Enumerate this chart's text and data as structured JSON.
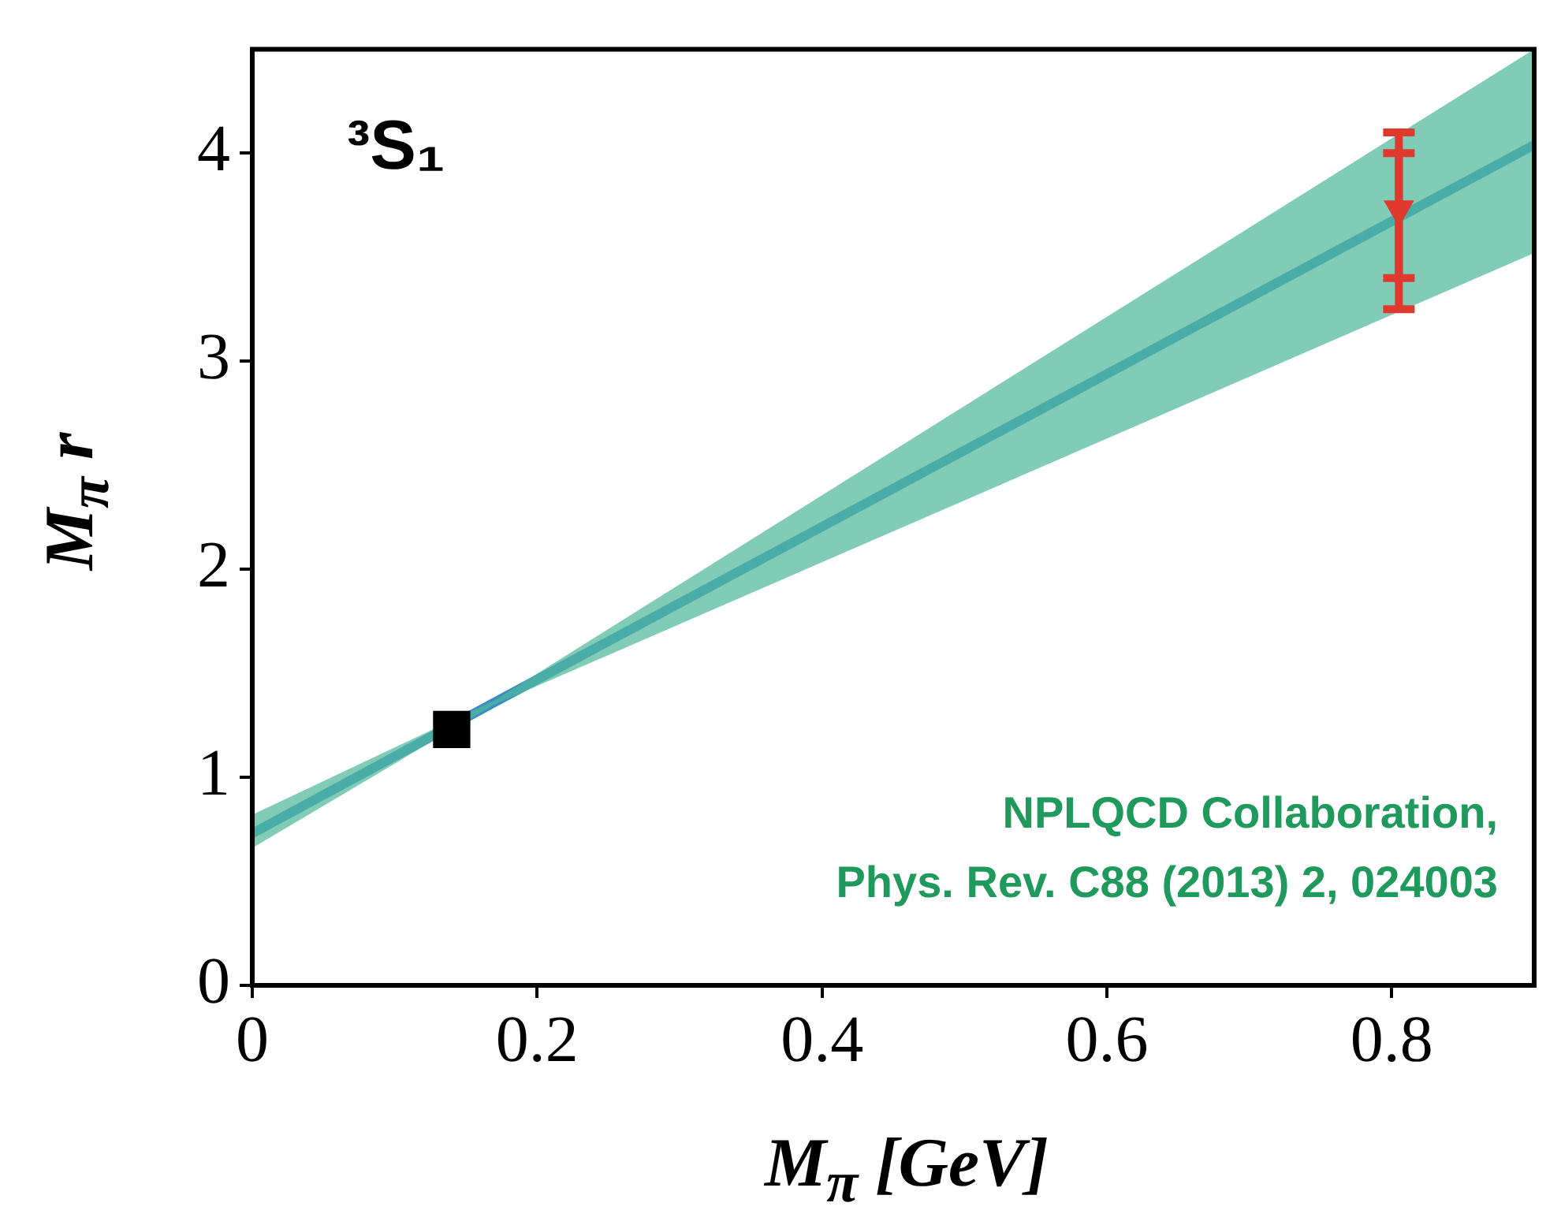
{
  "chart_data": {
    "type": "line",
    "xlabel": "M$_{π}$ [GeV]",
    "ylabel": "M$_{π}$ r",
    "xlim": [
      0,
      0.9
    ],
    "xticks": [
      0,
      0.2,
      0.4,
      0.6,
      0.8
    ],
    "ylim": [
      0,
      4.5
    ],
    "yticks": [
      0,
      1,
      2,
      3,
      4
    ],
    "grid": false,
    "legend": false,
    "annotations": [
      "³S₁",
      "NPLQCD Collaboration,",
      "Phys. Rev. C88 (2013) 2, 024003"
    ],
    "series": [
      {
        "color": "#3a8cc6",
        "x": [
          0,
          0.17,
          0.9
        ],
        "values": [
          0.73,
          1.36,
          4.04
        ],
        "lower": [
          0.66,
          1.35,
          3.52
        ],
        "upper": [
          0.82,
          1.37,
          4.5
        ]
      },
      {
        "type": "scatter",
        "color": "#000000",
        "marker": "square",
        "x": [
          0.14
        ],
        "values": [
          1.23
        ]
      },
      {
        "type": "scatter",
        "color": "#e03a2e",
        "marker": "triangle",
        "x": [
          0.805
        ],
        "values": [
          3.73
        ],
        "errors": [
          [
            3.4,
            4.0
          ]
        ]
      },
      {
        "type": "scatter",
        "color": "#e03a2e",
        "marker": "triangle",
        "x": [
          0.805
        ],
        "values": [
          3.73
        ],
        "errors": [
          [
            3.25,
            4.1
          ]
        ]
      }
    ]
  }
}
